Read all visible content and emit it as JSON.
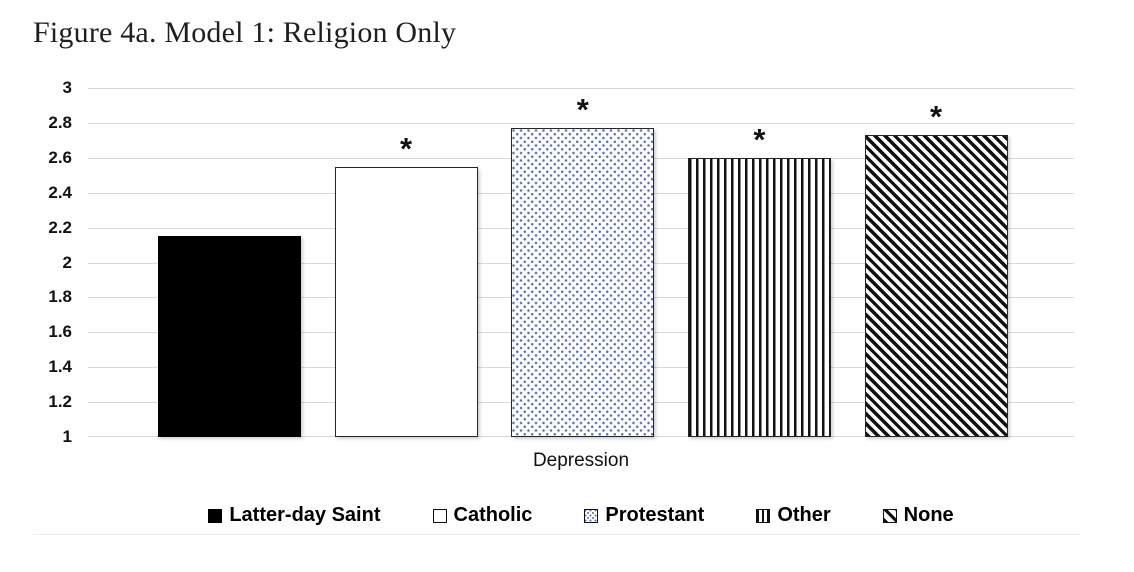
{
  "figure": {
    "title": "Figure 4a. Model 1: Religion Only"
  },
  "chart_data": {
    "type": "bar",
    "title": "Figure 4a. Model 1: Religion Only",
    "categories": [
      "Depression"
    ],
    "series": [
      {
        "name": "Latter-day Saint",
        "value": 2.15,
        "pattern": "solid",
        "significant": false
      },
      {
        "name": "Catholic",
        "value": 2.55,
        "pattern": "plain",
        "significant": true
      },
      {
        "name": "Protestant",
        "value": 2.77,
        "pattern": "dots",
        "significant": true
      },
      {
        "name": "Other",
        "value": 2.6,
        "pattern": "vstripe",
        "significant": true
      },
      {
        "name": "None",
        "value": 2.73,
        "pattern": "diag",
        "significant": true
      }
    ],
    "xlabel": "Depression",
    "ylim": [
      1,
      3
    ],
    "ytick_step": 0.2,
    "yticks": [
      "3",
      "2.8",
      "2.6",
      "2.4",
      "2.2",
      "2",
      "1.8",
      "1.6",
      "1.4",
      "1.2",
      "1"
    ],
    "significance_marker": "*",
    "legend": [
      "Latter-day Saint",
      "Catholic",
      "Protestant",
      "Other",
      "None"
    ],
    "legend_position": "bottom",
    "grid": true
  },
  "colors": {
    "dot_pattern_blue": "#5671b8",
    "gridline": "#d9d9d9",
    "bar_border": "#262626",
    "text": "#111111",
    "title_text": "#1f1f1f"
  }
}
